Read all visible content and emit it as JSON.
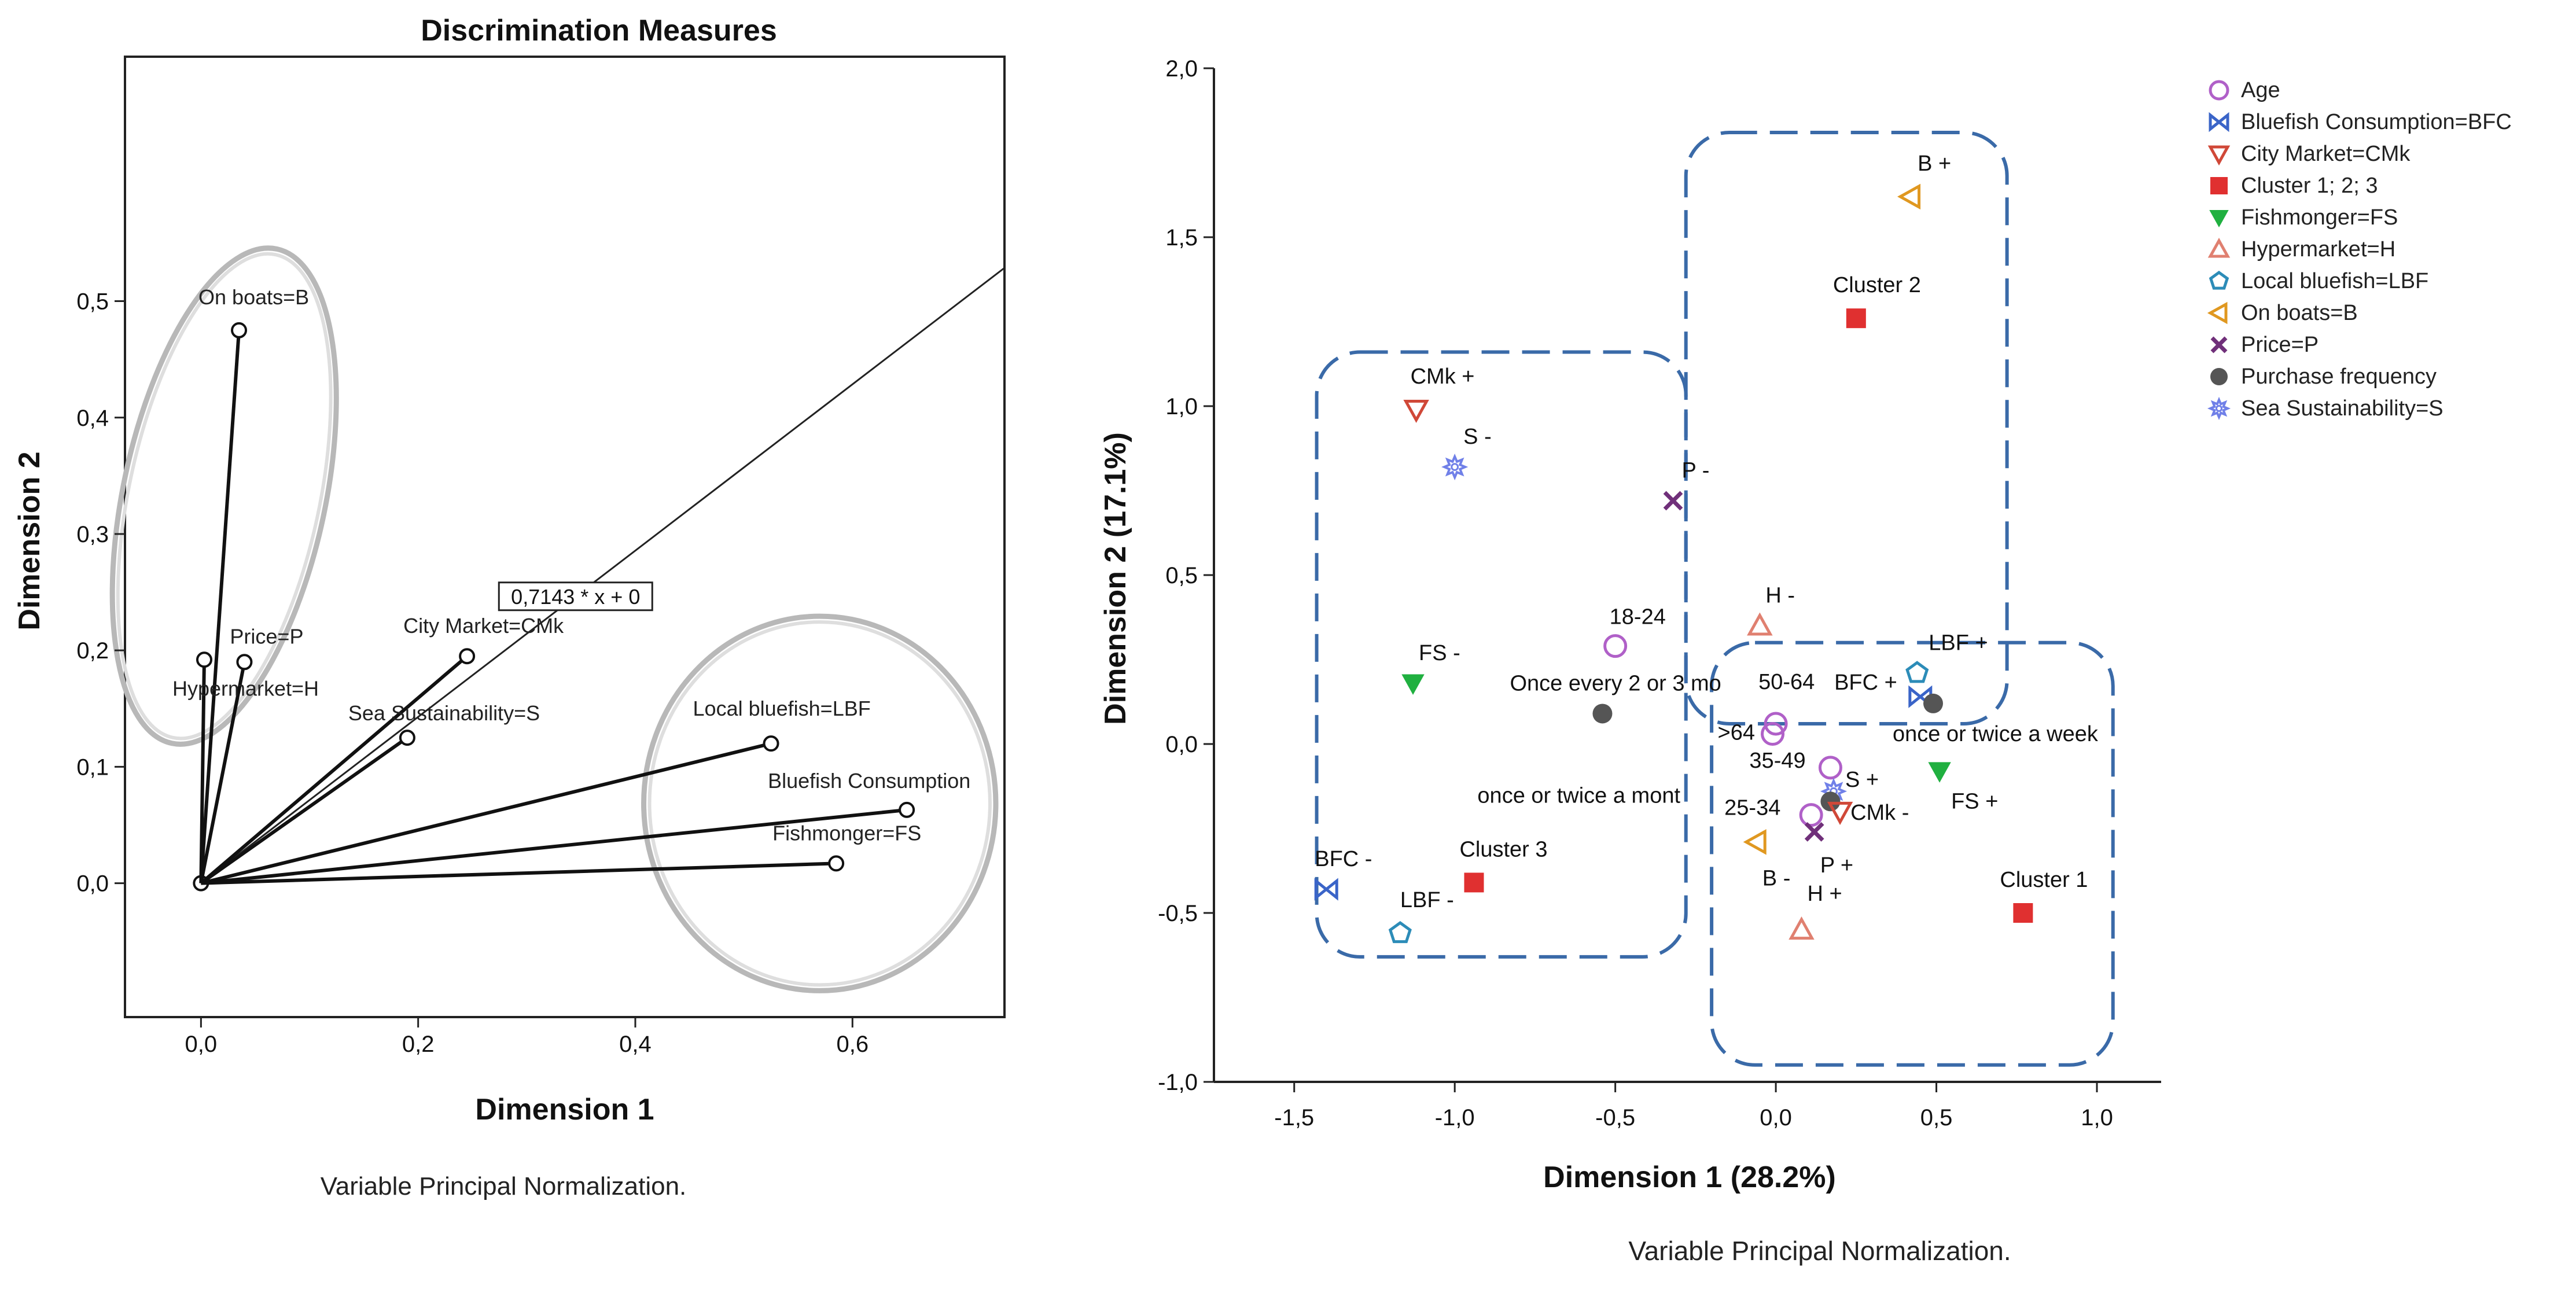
{
  "chart_data": [
    {
      "type": "scatter",
      "title": "Discrimination Measures",
      "xlabel": "Dimension 1",
      "ylabel": "Dimension 2",
      "footnote": "Variable Principal Normalization.",
      "xlim": [
        -0.07,
        0.74
      ],
      "ylim": [
        -0.115,
        0.71
      ],
      "xticks": [
        "0,0",
        "0,2",
        "0,4",
        "0,6"
      ],
      "xtick_values": [
        0,
        0.2,
        0.4,
        0.6
      ],
      "yticks": [
        "0,0",
        "0,1",
        "0,2",
        "0,3",
        "0,4",
        "0,5"
      ],
      "ytick_values": [
        0,
        0.1,
        0.2,
        0.3,
        0.4,
        0.5
      ],
      "points": [
        {
          "label": "On boats=B",
          "x": 0.035,
          "y": 0.475
        },
        {
          "label": "Price=P",
          "x": 0.04,
          "y": 0.19
        },
        {
          "label": "Hypermarket=H",
          "x": 0.003,
          "y": 0.192
        },
        {
          "label": "City Market=CMk",
          "x": 0.245,
          "y": 0.195
        },
        {
          "label": "Sea Sustainability=S",
          "x": 0.19,
          "y": 0.125
        },
        {
          "label": "Local bluefish=LBF",
          "x": 0.525,
          "y": 0.12
        },
        {
          "label": "Bluefish Consumption",
          "x": 0.65,
          "y": 0.063
        },
        {
          "label": "Fishmonger=FS",
          "x": 0.585,
          "y": 0.017
        }
      ],
      "reference_line": {
        "label": "0,7143 * x + 0",
        "slope": 0.7143,
        "intercept": 0
      },
      "groups": [
        "On boats / Price / Hypermarket",
        "Local bluefish / Bluefish Consumption / Fishmonger"
      ]
    },
    {
      "type": "scatter",
      "xlabel": "Dimension 1 (28.2%)",
      "ylabel": "Dimension 2 (17.1%)",
      "footnote": "Variable Principal Normalization.",
      "xlim": [
        -1.75,
        1.2
      ],
      "ylim": [
        -1.0,
        2.0
      ],
      "xticks": [
        "-1,5",
        "-1,0",
        "-0,5",
        "0,0",
        "0,5",
        "1,0"
      ],
      "xtick_values": [
        -1.5,
        -1.0,
        -0.5,
        0.0,
        0.5,
        1.0
      ],
      "yticks": [
        "-1,0",
        "-0,5",
        "0,0",
        "0,5",
        "1,0",
        "1,5",
        "2,0"
      ],
      "ytick_values": [
        -1.0,
        -0.5,
        0.0,
        0.5,
        1.0,
        1.5,
        2.0
      ],
      "legend": [
        {
          "label": "Age",
          "marker": "circle",
          "color": "#b060c8"
        },
        {
          "label": "Bluefish Consumption=BFC",
          "marker": "bowtie",
          "color": "#3a64c8"
        },
        {
          "label": "City Market=CMk",
          "marker": "triangle-down",
          "color": "#d04838"
        },
        {
          "label": "Cluster 1; 2; 3",
          "marker": "square",
          "color": "#e03030"
        },
        {
          "label": "Fishmonger=FS",
          "marker": "triangle-down-filled",
          "color": "#20b040"
        },
        {
          "label": "Hypermarket=H",
          "marker": "triangle-up",
          "color": "#e08070"
        },
        {
          "label": "Local bluefish=LBF",
          "marker": "pentagon",
          "color": "#2c8cb8"
        },
        {
          "label": "On boats=B",
          "marker": "triangle-left",
          "color": "#e09820"
        },
        {
          "label": "Price=P",
          "marker": "x",
          "color": "#70307a"
        },
        {
          "label": "Purchase frequency",
          "marker": "dot",
          "color": "#555555"
        },
        {
          "label": "Sea Sustainability=S",
          "marker": "star",
          "color": "#7080e8"
        }
      ],
      "points": [
        {
          "label": "B +",
          "category": "On boats=B",
          "x": 0.42,
          "y": 1.62
        },
        {
          "label": "Cluster 2",
          "category": "Cluster 1; 2; 3",
          "x": 0.25,
          "y": 1.26
        },
        {
          "label": "CMk +",
          "category": "City Market=CMk",
          "x": -1.12,
          "y": 0.99
        },
        {
          "label": "S -",
          "category": "Sea Sustainability=S",
          "x": -1.0,
          "y": 0.82
        },
        {
          "label": "P -",
          "category": "Price=P",
          "x": -0.32,
          "y": 0.72
        },
        {
          "label": "H -",
          "category": "Hypermarket=H",
          "x": -0.05,
          "y": 0.35
        },
        {
          "label": "18-24",
          "category": "Age",
          "x": -0.5,
          "y": 0.29
        },
        {
          "label": "FS -",
          "category": "Fishmonger=FS",
          "x": -1.13,
          "y": 0.18
        },
        {
          "label": "LBF +",
          "category": "Local bluefish=LBF",
          "x": 0.44,
          "y": 0.21
        },
        {
          "label": "BFC +",
          "category": "Bluefish Consumption=BFC",
          "x": 0.45,
          "y": 0.14
        },
        {
          "label": "once or twice a week",
          "category": "Purchase frequency",
          "x": 0.49,
          "y": 0.12
        },
        {
          "label": "Once every 2 or 3 mo",
          "category": "Purchase frequency",
          "x": -0.54,
          "y": 0.09
        },
        {
          "label": "50-64",
          "category": "Age",
          "x": 0.0,
          "y": 0.06
        },
        {
          "label": ">64",
          "category": "Age",
          "x": -0.01,
          "y": 0.03
        },
        {
          "label": "35-49",
          "category": "Age",
          "x": 0.17,
          "y": -0.07
        },
        {
          "label": "S +",
          "category": "Sea Sustainability=S",
          "x": 0.18,
          "y": -0.14
        },
        {
          "label": "FS +",
          "category": "Fishmonger=FS",
          "x": 0.51,
          "y": -0.08
        },
        {
          "label": "once or twice a mont",
          "category": "Purchase frequency",
          "x": 0.17,
          "y": -0.17
        },
        {
          "label": "25-34",
          "category": "Age",
          "x": 0.11,
          "y": -0.21
        },
        {
          "label": "CMk -",
          "category": "City Market=CMk",
          "x": 0.2,
          "y": -0.2
        },
        {
          "label": "P +",
          "category": "Price=P",
          "x": 0.12,
          "y": -0.26
        },
        {
          "label": "B -",
          "category": "On boats=B",
          "x": -0.06,
          "y": -0.29
        },
        {
          "label": "Cluster 3",
          "category": "Cluster 1; 2; 3",
          "x": -0.94,
          "y": -0.41
        },
        {
          "label": "BFC -",
          "category": "Bluefish Consumption=BFC",
          "x": -1.4,
          "y": -0.43
        },
        {
          "label": "LBF -",
          "category": "Local bluefish=LBF",
          "x": -1.17,
          "y": -0.56
        },
        {
          "label": "H +",
          "category": "Hypermarket=H",
          "x": 0.08,
          "y": -0.55
        },
        {
          "label": "Cluster 1",
          "category": "Cluster 1; 2; 3",
          "x": 0.77,
          "y": -0.5
        }
      ],
      "cluster_boxes": [
        {
          "name": "Cluster 3",
          "x": [
            -1.43,
            -0.28
          ],
          "y": [
            -0.63,
            1.16
          ]
        },
        {
          "name": "Cluster 2",
          "x": [
            -0.28,
            0.72
          ],
          "y": [
            0.06,
            1.81
          ]
        },
        {
          "name": "Cluster 1",
          "x": [
            -0.2,
            1.05
          ],
          "y": [
            -0.95,
            0.3
          ]
        }
      ]
    }
  ]
}
